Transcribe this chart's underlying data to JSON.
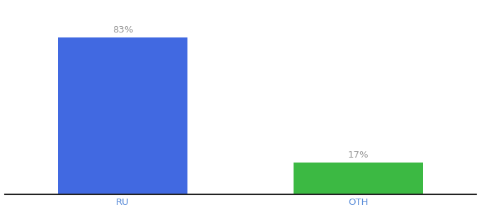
{
  "categories": [
    "RU",
    "OTH"
  ],
  "values": [
    83,
    17
  ],
  "bar_colors": [
    "#4169E1",
    "#3CB943"
  ],
  "labels": [
    "83%",
    "17%"
  ],
  "background_color": "#ffffff",
  "ylim": [
    0,
    100
  ],
  "bar_width": 0.55,
  "label_fontsize": 9.5,
  "tick_fontsize": 9.5,
  "tick_color": "#5b8dd9",
  "label_color": "#999999",
  "x_positions": [
    0.5,
    1.5
  ]
}
